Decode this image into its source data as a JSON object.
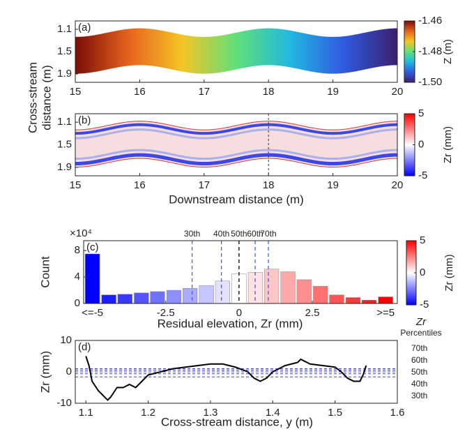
{
  "chart_data": [
    {
      "type": "heatmap",
      "panel_label": "(a)",
      "ylabel": [
        "Cross-stream",
        "distance (m)"
      ],
      "xlim": [
        15,
        20
      ],
      "xticks": [
        15,
        16,
        17,
        18,
        19,
        20
      ],
      "ylim": [
        2.05,
        0.95
      ],
      "yticks": [
        1.1,
        1.5,
        1.9
      ],
      "colorbar_label": "Z (m)",
      "clim": [
        -1.5,
        -1.46
      ],
      "cticks": [
        -1.46,
        -1.48,
        {
          "value": -1.5,
          "label": "-1.50"
        }
      ],
      "colormap": [
        "#3b1f6e",
        "#2f5ae0",
        "#22b8e0",
        "#60e07a",
        "#f4c526",
        "#e7631e",
        "#7a0c08"
      ]
    },
    {
      "type": "heatmap",
      "panel_label": "(b)",
      "xlabel": "Downstream distance (m)",
      "vline": 18,
      "xlim": [
        15,
        20
      ],
      "xticks": [
        15,
        16,
        17,
        18,
        19,
        20
      ],
      "ylim": [
        2.05,
        0.95
      ],
      "yticks": [
        1.1,
        1.5,
        1.9
      ],
      "colorbar_label": "Zr (mm)",
      "clim": [
        -5,
        5
      ],
      "cticks": [
        5,
        0,
        -5
      ],
      "colormap": [
        "#0000ff",
        "#ffffff",
        "#ff0000"
      ]
    },
    {
      "type": "bar",
      "panel_label": "(c)",
      "multiplier": "×10⁴",
      "ylabel": "Count",
      "xlabel": "Residual elevation,  Zr (mm)",
      "x": [
        -5,
        -4.44,
        -3.89,
        -3.33,
        -2.78,
        -2.22,
        -1.67,
        -1.11,
        -0.56,
        0,
        0.56,
        1.11,
        1.67,
        2.22,
        2.78,
        3.33,
        3.89,
        4.44,
        5
      ],
      "values": [
        7.5,
        1.3,
        1.4,
        1.6,
        1.8,
        2.0,
        2.3,
        2.7,
        3.4,
        4.5,
        4.7,
        5.2,
        4.8,
        3.6,
        2.6,
        1.3,
        0.9,
        0.5,
        1.0
      ],
      "xlim": [
        -5.3,
        5.4
      ],
      "xticks": [
        {
          "value": -5,
          "label": "<=-5"
        },
        -2.5,
        0,
        2.5,
        {
          "value": 5,
          "label": ">=5"
        }
      ],
      "ylim": [
        0,
        9.5
      ],
      "yticks": [
        0,
        4,
        8
      ],
      "percentiles": [
        {
          "label": "30th",
          "value": -1.6,
          "color": "#4a5ee0"
        },
        {
          "label": "40th",
          "value": -0.6,
          "color": "#4a5ee0"
        },
        {
          "label": "50th",
          "value": 0,
          "color": "#000000"
        },
        {
          "label": "60th",
          "value": 0.55,
          "color": "#4a5ee0"
        },
        {
          "label": "70th",
          "value": 1.0,
          "color": "#4a5ee0"
        }
      ],
      "colorbar_label": "Zr (mm)",
      "clim": [
        -5,
        5
      ],
      "cticks": [
        5,
        0,
        -5
      ],
      "colormap": [
        "#0000ff",
        "#ffffff",
        "#ff0000"
      ]
    },
    {
      "type": "line",
      "panel_label": "(d)",
      "ylabel": "Zr (mm)",
      "xlabel": "Cross-stream distance, y (m)",
      "color": "#000000",
      "x": [
        1.1,
        1.105,
        1.11,
        1.12,
        1.13,
        1.135,
        1.14,
        1.15,
        1.16,
        1.17,
        1.18,
        1.19,
        1.2,
        1.22,
        1.24,
        1.26,
        1.28,
        1.3,
        1.32,
        1.34,
        1.36,
        1.37,
        1.38,
        1.39,
        1.4,
        1.42,
        1.44,
        1.445,
        1.46,
        1.48,
        1.5,
        1.51,
        1.52,
        1.53,
        1.54,
        1.545,
        1.55
      ],
      "values": [
        5,
        2,
        -3,
        -6,
        -8,
        -9,
        -8,
        -5,
        -5,
        -4,
        -5,
        -3,
        -1,
        0,
        1,
        1.5,
        2,
        2.5,
        2.5,
        1.5,
        0,
        -2,
        -3,
        -2,
        0,
        2,
        3,
        4,
        2.5,
        2,
        1.5,
        0,
        -2,
        -3,
        -3,
        -1,
        2
      ],
      "xlim": [
        1.083,
        1.6
      ],
      "xticks": [
        1.1,
        1.2,
        1.3,
        1.4,
        1.5,
        1.6
      ],
      "ylim": [
        -10,
        10
      ],
      "yticks": [
        -10,
        0,
        10
      ],
      "legend_title": [
        "Zr",
        "Percentiles"
      ],
      "hlines": [
        {
          "label": "70th",
          "value": 1.0
        },
        {
          "label": "60th",
          "value": 0.55
        },
        {
          "label": "50th",
          "value": 0
        },
        {
          "label": "40th",
          "value": -0.6
        },
        {
          "label": "30th",
          "value": -1.6
        }
      ]
    }
  ]
}
